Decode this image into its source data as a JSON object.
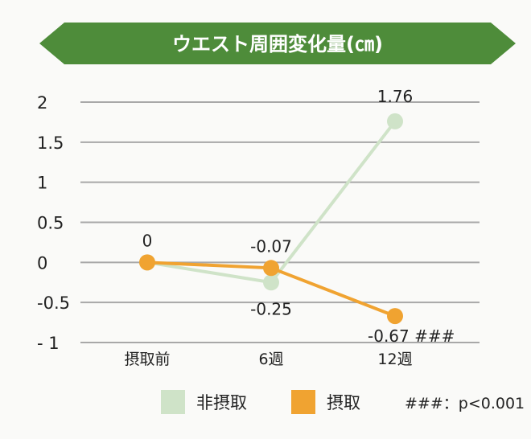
{
  "chart_data": {
    "type": "line",
    "title": "ウエスト周囲変化量(㎝)",
    "categories": [
      "摂取前",
      "6週",
      "12週"
    ],
    "ylim": [
      -1,
      2
    ],
    "yticks": [
      "2",
      "1.5",
      "1",
      "0.5",
      "0",
      "-0.5",
      "- 1"
    ],
    "ytick_values": [
      2,
      1.5,
      1,
      0.5,
      0,
      -0.5,
      -1
    ],
    "grid": true,
    "series": [
      {
        "name": "非摂取",
        "color": "#cfe3c8",
        "values": [
          0,
          -0.25,
          1.76
        ],
        "labels": [
          "",
          "-0.25",
          "1.76"
        ]
      },
      {
        "name": "摂取",
        "color": "#f0a331",
        "values": [
          0,
          -0.07,
          -0.67
        ],
        "labels": [
          "0",
          "-0.07",
          "-0.67 ###"
        ]
      }
    ],
    "legend_position": "bottom",
    "annotation": "###：p<0.001"
  },
  "colors": {
    "banner": "#4e8c3a",
    "banner_text": "#ffffff",
    "grid": "#a8a8a8"
  }
}
